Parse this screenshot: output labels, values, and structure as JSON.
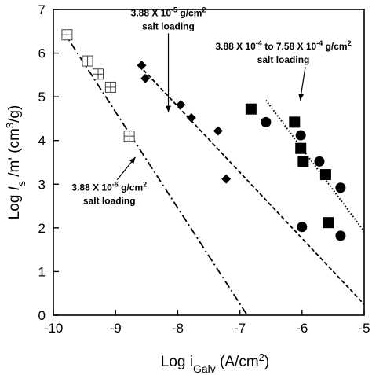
{
  "chart_data": {
    "type": "scatter",
    "title": "",
    "xlabel": {
      "main": "Log i",
      "sub": "Galv",
      "unit": " (A/cm",
      "sup": "2",
      "close": ")"
    },
    "ylabel": {
      "main": "Log ",
      "italic": "I",
      "sub": "s",
      "mid": " /m' (cm",
      "sup": "3",
      "close": "/g)"
    },
    "xlim": [
      -10,
      -5
    ],
    "ylim": [
      0,
      7
    ],
    "xticks": [
      -10,
      -9,
      -8,
      -7,
      -6,
      -5
    ],
    "yticks": [
      0,
      1,
      2,
      3,
      4,
      5,
      6,
      7
    ],
    "grid": false,
    "series": [
      {
        "marker": "crossed-square",
        "points": [
          [
            -9.78,
            6.42
          ],
          [
            -9.45,
            5.82
          ],
          [
            -9.28,
            5.52
          ],
          [
            -9.08,
            5.22
          ],
          [
            -8.78,
            4.1
          ]
        ]
      },
      {
        "marker": "diamond",
        "points": [
          [
            -8.58,
            5.72
          ],
          [
            -8.52,
            5.42
          ],
          [
            -7.95,
            4.82
          ],
          [
            -7.78,
            4.52
          ],
          [
            -7.35,
            4.22
          ],
          [
            -7.22,
            3.12
          ]
        ]
      },
      {
        "marker": "square",
        "points": [
          [
            -6.82,
            4.72
          ],
          [
            -6.12,
            4.42
          ],
          [
            -6.02,
            3.82
          ],
          [
            -5.98,
            3.52
          ],
          [
            -5.62,
            3.22
          ],
          [
            -5.58,
            2.12
          ]
        ]
      },
      {
        "marker": "circle",
        "points": [
          [
            -6.58,
            4.42
          ],
          [
            -6.02,
            4.12
          ],
          [
            -6.0,
            2.02
          ],
          [
            -5.72,
            3.52
          ],
          [
            -5.38,
            2.92
          ],
          [
            -5.38,
            1.82
          ]
        ]
      }
    ],
    "fit_lines": [
      {
        "style": "dashdot",
        "x": [
          -9.85,
          -6.88
        ],
        "y": [
          6.52,
          0.0
        ]
      },
      {
        "style": "dashed",
        "x": [
          -8.62,
          -5.0
        ],
        "y": [
          5.72,
          0.25
        ]
      },
      {
        "style": "dotted",
        "x": [
          -6.58,
          -5.0
        ],
        "y": [
          4.92,
          1.92
        ]
      }
    ],
    "annotations": [
      {
        "lines": [
          {
            "pre": "3.88 X 10",
            "sup": "-5",
            "post": " g/cm",
            "sup2": "2"
          },
          {
            "pre": "salt loading",
            "sup": "",
            "post": "",
            "sup2": ""
          }
        ],
        "anchor": [
          -8.15,
          6.85
        ],
        "arrow_to": [
          -8.15,
          4.65
        ]
      },
      {
        "lines": [
          {
            "pre": "3.88 X 10",
            "sup": "-4",
            "post": " to 7.58 X 10",
            "sup2": "-4",
            "post2": " g/cm",
            "sup3": "2"
          },
          {
            "pre": "salt loading",
            "sup": "",
            "post": "",
            "sup2": ""
          }
        ],
        "anchor": [
          -6.3,
          6.08
        ],
        "arrow_to": [
          -6.03,
          4.92
        ]
      },
      {
        "lines": [
          {
            "pre": "3.88 X 10",
            "sup": "-6",
            "post": " g/cm",
            "sup2": "2"
          },
          {
            "pre": "salt loading",
            "sup": "",
            "post": "",
            "sup2": ""
          }
        ],
        "anchor": [
          -9.1,
          2.85
        ],
        "arrow_to": [
          -8.68,
          3.62
        ]
      }
    ]
  }
}
